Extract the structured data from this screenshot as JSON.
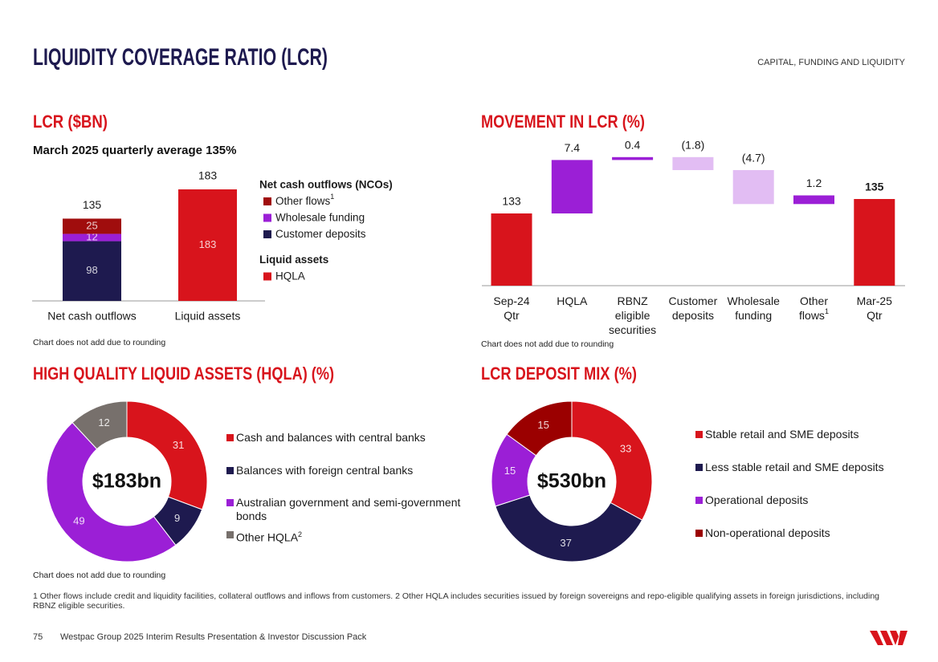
{
  "header": {
    "title": "LIQUIDITY COVERAGE RATIO (LCR)",
    "section": "CAPITAL, FUNDING AND LIQUIDITY"
  },
  "chart_data": [
    {
      "type": "stacked_bar",
      "title": "LCR ($BN)",
      "subtitle": "March 2025 quarterly average 135%",
      "categories": [
        "Net cash outflows",
        "Liquid assets"
      ],
      "groups": [
        {
          "name": "Net cash outflows (NCOs)",
          "series": [
            {
              "name": "Customer deposits",
              "color": "#1e1a4f",
              "values": [
                98,
                null
              ]
            },
            {
              "name": "Wholesale funding",
              "color": "#9b1fd6",
              "values": [
                12,
                null
              ]
            },
            {
              "name": "Other flows",
              "note": "1",
              "color": "#a00d0d",
              "values": [
                25,
                null
              ]
            }
          ]
        },
        {
          "name": "Liquid assets",
          "series": [
            {
              "name": "HQLA",
              "color": "#d8141c",
              "values": [
                null,
                183
              ]
            }
          ]
        }
      ],
      "totals": [
        135,
        183
      ],
      "note": "Chart does not add due to rounding"
    },
    {
      "type": "waterfall",
      "title": "MOVEMENT IN LCR (%)",
      "categories": [
        "Sep-24 Qtr",
        "HQLA",
        "RBNZ eligible securities",
        "Customer deposits",
        "Wholesale funding",
        "Other flows",
        "Mar-25 Qtr"
      ],
      "category_notes": [
        null,
        null,
        null,
        null,
        null,
        "1",
        null
      ],
      "values": [
        133,
        7.4,
        0.4,
        -1.8,
        -4.7,
        1.2,
        135
      ],
      "value_labels": [
        "133",
        "7.4",
        "0.4",
        "(1.8)",
        "(4.7)",
        "1.2",
        "135"
      ],
      "totals": [
        true,
        false,
        false,
        false,
        false,
        false,
        true
      ],
      "colors": [
        "#d8141c",
        "#9b1fd6",
        "#9b1fd6",
        "#e2bdf3",
        "#e2bdf3",
        "#9b1fd6",
        "#d8141c"
      ],
      "ylim": [
        123,
        142
      ],
      "note": "Chart does not add due to rounding"
    },
    {
      "type": "donut",
      "title": "HIGH QUALITY LIQUID ASSETS (HQLA) (%)",
      "center_label": "$183bn",
      "categories": [
        "Cash and balances with central banks",
        "Balances with foreign central banks",
        "Australian government and semi-government bonds",
        "Other HQLA"
      ],
      "category_notes": [
        null,
        null,
        null,
        "2"
      ],
      "values": [
        31,
        9,
        49,
        12
      ],
      "colors": [
        "#d8141c",
        "#1e1a4f",
        "#9b1fd6",
        "#77706c"
      ],
      "note": "Chart does not add due to rounding"
    },
    {
      "type": "donut",
      "title": "LCR DEPOSIT MIX (%)",
      "center_label": "$530bn",
      "categories": [
        "Stable retail and SME deposits",
        "Less stable retail and SME deposits",
        "Operational deposits",
        "Non-operational deposits"
      ],
      "values": [
        33,
        37,
        15,
        15
      ],
      "colors": [
        "#d8141c",
        "#1e1a4f",
        "#9b1fd6",
        "#9b0000"
      ]
    }
  ],
  "footnote": "1 Other flows include credit and liquidity facilities, collateral outflows and inflows from customers. 2 Other HQLA includes securities issued by foreign sovereigns and repo-eligible qualifying assets in foreign jurisdictions, including RBNZ eligible securities.",
  "footer": {
    "page": 75,
    "text": "Westpac Group 2025 Interim Results Presentation & Investor Discussion Pack"
  }
}
